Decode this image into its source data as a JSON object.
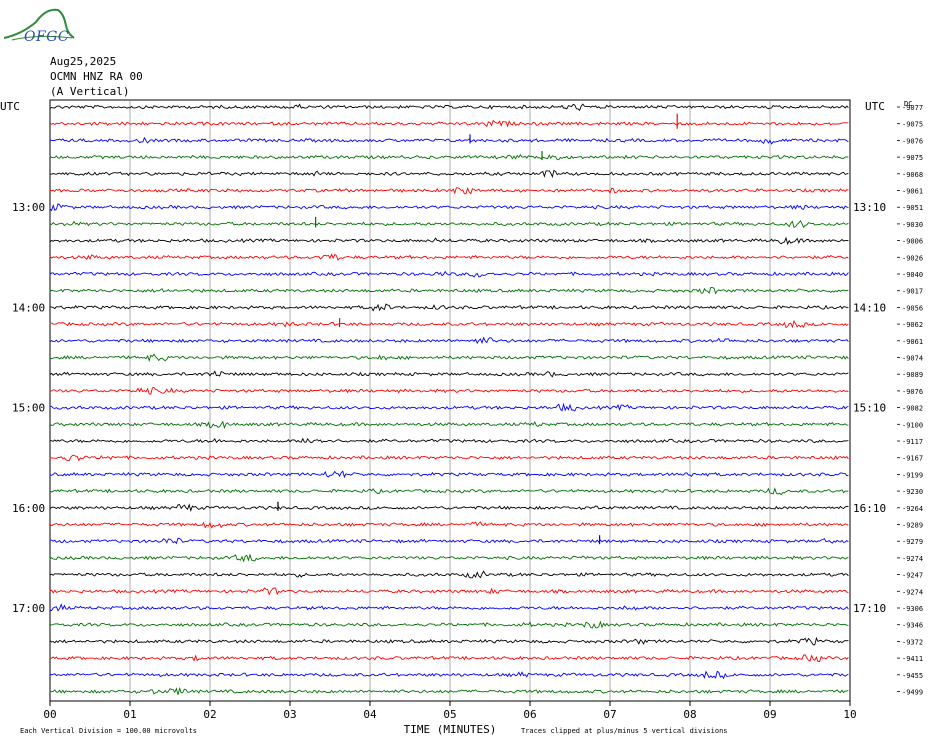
{
  "header": {
    "logo_text": "OFGC",
    "date": "Aug25,2025",
    "station": "OCMN HNZ RA 00",
    "component": "(A Vertical)"
  },
  "chart_data": {
    "type": "line",
    "title": "",
    "xlabel": "TIME (MINUTES)",
    "ylabel": "",
    "xlim": [
      0,
      10
    ],
    "x_ticks": [
      "00",
      "01",
      "02",
      "03",
      "04",
      "05",
      "06",
      "07",
      "08",
      "09",
      "10"
    ],
    "left_axis_top_label": "UTC",
    "right_axis_top_label": "UTC",
    "right_header_fragment": "DC",
    "left_time_labels": [
      {
        "row": 6,
        "label": "13:00"
      },
      {
        "row": 12,
        "label": "14:00"
      },
      {
        "row": 18,
        "label": "15:00"
      },
      {
        "row": 24,
        "label": "16:00"
      },
      {
        "row": 30,
        "label": "17:00"
      }
    ],
    "right_time_labels": [
      {
        "row": 6,
        "label": "13:10"
      },
      {
        "row": 12,
        "label": "14:10"
      },
      {
        "row": 18,
        "label": "15:10"
      },
      {
        "row": 24,
        "label": "16:10"
      },
      {
        "row": 30,
        "label": "17:10"
      }
    ],
    "trace_colors": [
      "#000000",
      "#ff0000",
      "#0000ff",
      "#007000"
    ],
    "dc_offsets": [
      "-9077",
      "-9075",
      "-9076",
      "-9075",
      "-9068",
      "-9061",
      "-9051",
      "-9030",
      "-9006",
      "-9026",
      "-9040",
      "-9017",
      "-9056",
      "-9062",
      "-9061",
      "-9074",
      "-9089",
      "-9076",
      "-9082",
      "-9100",
      "-9117",
      "-9167",
      "-9199",
      "-9230",
      "-9264",
      "-9289",
      "-9279",
      "-9274",
      "-9247",
      "-9274",
      "-9306",
      "-9346",
      "-9372",
      "-9411",
      "-9455",
      "-9499"
    ],
    "vertical_division_note": "Each Vertical Division =  100.00 microvolts",
    "clip_note": "Traces clipped at plus/minus 5 vertical divisions",
    "grid": true
  }
}
